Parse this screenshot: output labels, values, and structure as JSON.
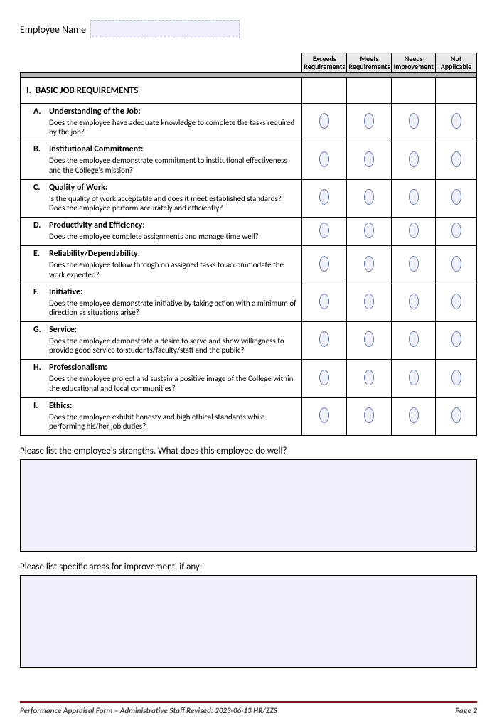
{
  "employee": {
    "label": "Employee Name",
    "value": ""
  },
  "rating_headers": {
    "c1a": "Exceeds",
    "c1b": "Requirements",
    "c2a": "Meets",
    "c2b": "Requirements",
    "c3a": "Needs",
    "c3b": "Improvement",
    "c4a": "Not",
    "c4b": "Applicable"
  },
  "section": {
    "number": "I.",
    "title": "BASIC JOB REQUIREMENTS"
  },
  "criteria": {
    "a": {
      "letter": "A.",
      "title": "Understanding of the Job:",
      "desc": "Does the employee have adequate knowledge to complete the tasks required by the job?"
    },
    "b": {
      "letter": "B.",
      "title": "Institutional Commitment:",
      "desc": "Does the employee demonstrate commitment to institutional effectiveness and the College's mission?"
    },
    "c": {
      "letter": "C.",
      "title": "Quality of Work:",
      "desc": "Is the quality of work acceptable and does it meet established standards? Does the employee perform accurately and efficiently?"
    },
    "d": {
      "letter": "D.",
      "title": "Productivity and Efficiency:",
      "desc": "Does the employee complete assignments and manage time well?"
    },
    "e": {
      "letter": "E.",
      "title": "Reliability/Dependability:",
      "desc": "Does the employee follow through on assigned tasks to accommodate the work expected?"
    },
    "f": {
      "letter": "F.",
      "title": "Initiative:",
      "desc": "Does the employee demonstrate initiative by taking action with a minimum of direction as situations arise?"
    },
    "g": {
      "letter": "G.",
      "title": "Service:",
      "desc": "Does the employee demonstrate a desire to serve and show willingness to provide good service to students/faculty/staff and the public?"
    },
    "h": {
      "letter": "H.",
      "title": "Professionalism:",
      "desc": "Does the employee project and sustain a positive image of the College within the educational and local communities?"
    },
    "i": {
      "letter": "I.",
      "title": "Ethics:",
      "desc": "Does the employee exhibit honesty and high ethical standards while performing his/her job duties?"
    }
  },
  "prompts": {
    "strengths": "Please list the employee's strengths. What does this employee do well?",
    "improvement": "Please list specific areas for improvement, if any:"
  },
  "footer": {
    "left": "Performance Appraisal Form – Administrative Staff   Revised: 2023-06-13 HR/ZZS",
    "right": "Page 2"
  },
  "style": {
    "oval_fill": "#eef0fa",
    "oval_border": "#6b7aa8",
    "input_fill": "#eef0fa",
    "header_fill": "#e8e8e8",
    "band_fill": "#b5b5b5",
    "footer_line": "#7a1d1d"
  }
}
